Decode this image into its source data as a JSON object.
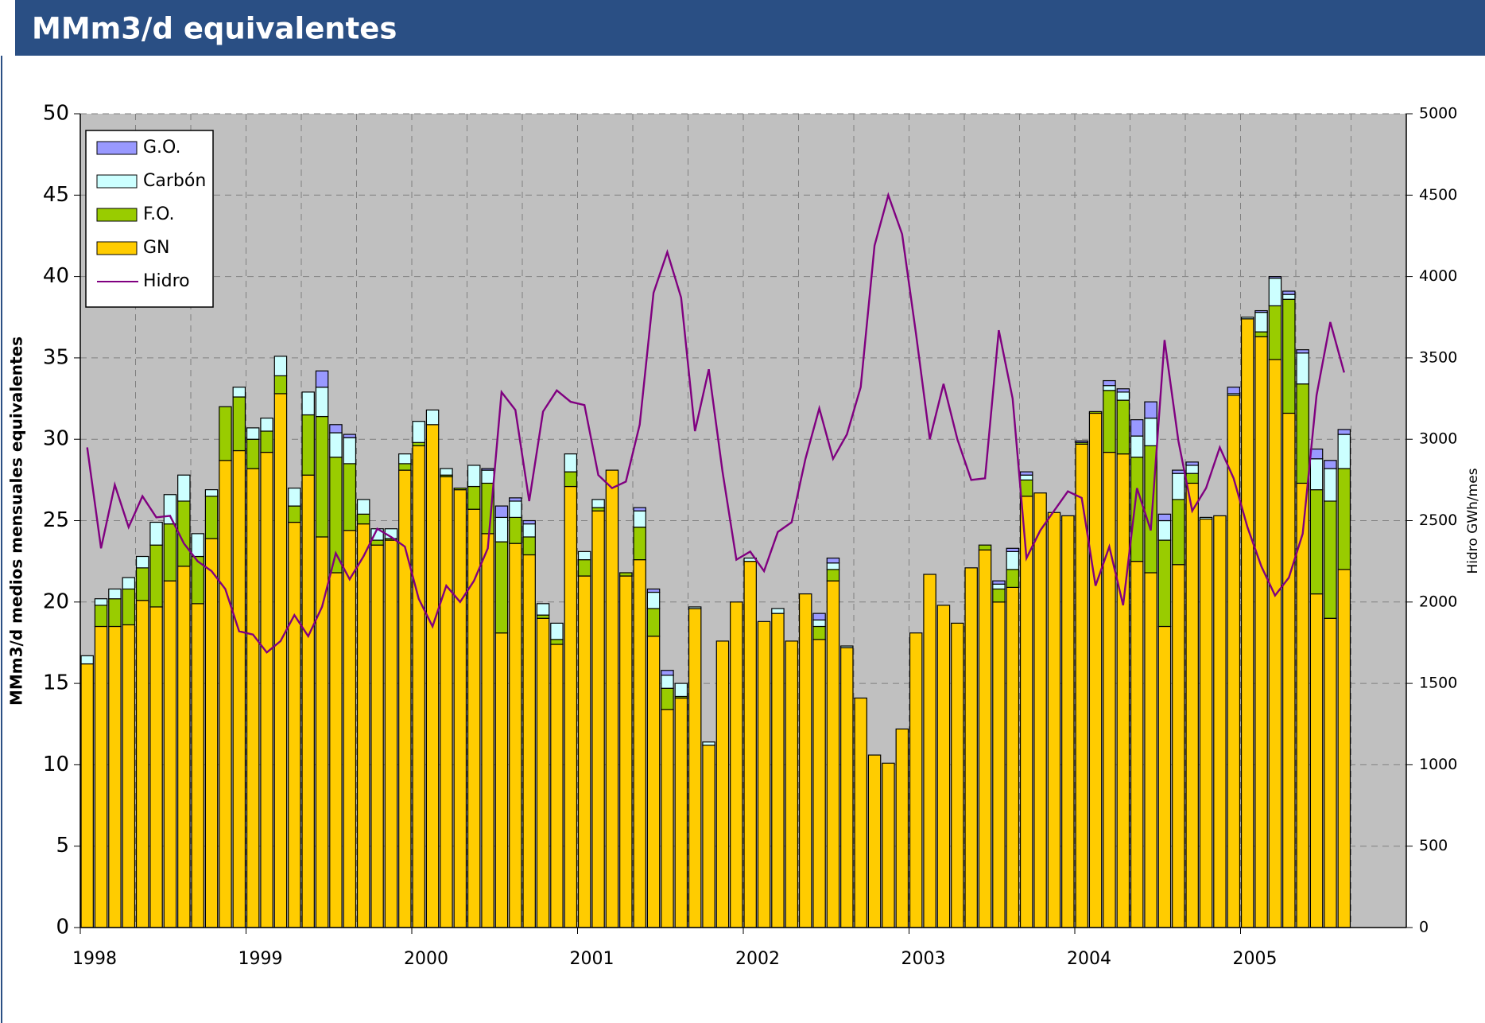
{
  "chart_data": {
    "type": "bar",
    "title": "MMm3/d equivalentes",
    "y_label": "MMm3/d medios mensuales equivalentes",
    "y2_label": "Hidro GWh/mes",
    "stacked": true,
    "grid": true,
    "legend": "top-left",
    "categories": [
      "1998",
      null,
      null,
      null,
      null,
      null,
      null,
      null,
      null,
      null,
      null,
      null,
      "1999",
      null,
      null,
      null,
      null,
      null,
      null,
      null,
      null,
      null,
      null,
      null,
      "2000",
      null,
      null,
      null,
      null,
      null,
      null,
      null,
      null,
      null,
      null,
      null,
      "2001",
      null,
      null,
      null,
      null,
      null,
      null,
      null,
      null,
      null,
      null,
      null,
      "2002",
      null,
      null,
      null,
      null,
      null,
      null,
      null,
      null,
      null,
      null,
      null,
      "2003",
      null,
      null,
      null,
      null,
      null,
      null,
      null,
      null,
      null,
      null,
      null,
      "2004",
      null,
      null,
      null,
      null,
      null,
      null,
      null,
      null,
      null,
      null,
      null,
      "2005",
      null,
      null,
      null,
      null,
      null,
      null,
      null
    ],
    "ylim": [
      0,
      50
    ],
    "yticks": [
      0,
      5,
      10,
      15,
      20,
      25,
      30,
      35,
      40,
      45,
      50
    ],
    "y2lim": [
      0,
      5000
    ],
    "y2ticks": [
      0,
      500,
      1000,
      1500,
      2000,
      2500,
      3000,
      3500,
      4000,
      4500,
      5000
    ],
    "series": [
      {
        "name": "GN",
        "color": "#ffcc00",
        "values": [
          16.2,
          18.5,
          18.5,
          18.6,
          20.1,
          19.7,
          21.3,
          22.2,
          19.9,
          23.9,
          28.7,
          29.3,
          28.2,
          29.2,
          32.8,
          24.9,
          27.8,
          24.0,
          21.8,
          24.4,
          24.8,
          23.5,
          23.8,
          28.1,
          29.6,
          30.9,
          27.7,
          26.9,
          25.7,
          24.2,
          18.1,
          23.6,
          22.9,
          19.0,
          17.4,
          27.1,
          21.6,
          25.6,
          28.1,
          21.6,
          22.6,
          17.9,
          13.4,
          14.1,
          19.6,
          11.2,
          17.6,
          20.0,
          22.5,
          18.8,
          19.3,
          17.6,
          20.5,
          17.7,
          21.3,
          17.2,
          14.1,
          10.6,
          10.1,
          12.2,
          18.1,
          21.7,
          19.8,
          18.7,
          22.1,
          23.2,
          20.0,
          20.9,
          26.5,
          26.7,
          25.5,
          25.3,
          29.7,
          31.6,
          29.2,
          29.1,
          22.5,
          21.8,
          18.5,
          22.3,
          27.3,
          25.1,
          25.3,
          32.7,
          37.4,
          36.3,
          34.9,
          31.6,
          27.3,
          20.5,
          19.0,
          22.0
        ]
      },
      {
        "name": "F.O.",
        "color": "#99cc00",
        "values": [
          0,
          1.3,
          1.7,
          2.2,
          2.0,
          3.8,
          3.5,
          4.0,
          2.9,
          2.6,
          3.3,
          3.3,
          1.8,
          1.3,
          1.1,
          1.0,
          3.7,
          7.4,
          7.1,
          4.1,
          0.6,
          0.3,
          0.1,
          0.4,
          0.2,
          0,
          0.1,
          0.1,
          1.4,
          3.1,
          5.6,
          1.6,
          1.1,
          0.2,
          0.3,
          0.9,
          1.0,
          0.2,
          0,
          0.2,
          2.0,
          1.7,
          1.3,
          0.1,
          0,
          0,
          0,
          0,
          0,
          0,
          0,
          0,
          0,
          0.8,
          0.7,
          0,
          0,
          0,
          0,
          0,
          0,
          0,
          0,
          0,
          0,
          0.3,
          0.8,
          1.1,
          1.0,
          0,
          0,
          0,
          0.1,
          0.1,
          3.8,
          3.3,
          6.4,
          7.8,
          5.3,
          4.0,
          0.6,
          0,
          0,
          0,
          0,
          0.3,
          3.3,
          7.0,
          6.1,
          6.4,
          7.2,
          6.2
        ]
      },
      {
        "name": "Carbón",
        "color": "#ccffff",
        "values": [
          0.5,
          0.4,
          0.6,
          0.7,
          0.7,
          1.4,
          1.8,
          1.6,
          1.4,
          0.4,
          0,
          0.6,
          0.7,
          0.8,
          1.2,
          1.1,
          1.4,
          1.8,
          1.5,
          1.6,
          0.9,
          0.7,
          0.6,
          0.6,
          1.3,
          0.9,
          0.4,
          0,
          1.3,
          0.8,
          1.5,
          1.0,
          0.8,
          0.7,
          1.0,
          1.1,
          0.5,
          0.5,
          0,
          0,
          1.0,
          1.0,
          0.8,
          0.8,
          0.1,
          0.2,
          0,
          0,
          0.2,
          0,
          0.3,
          0,
          0,
          0.4,
          0.4,
          0.1,
          0,
          0,
          0,
          0,
          0,
          0,
          0,
          0,
          0,
          0,
          0.3,
          1.1,
          0.3,
          0,
          0,
          0,
          0,
          0,
          0.3,
          0.5,
          1.3,
          1.7,
          1.2,
          1.6,
          0.5,
          0.1,
          0,
          0.1,
          0.1,
          1.2,
          1.7,
          0.3,
          1.9,
          1.9,
          2.0,
          2.1
        ]
      },
      {
        "name": "G.O.",
        "color": "#9999ff",
        "values": [
          0,
          0,
          0,
          0,
          0,
          0,
          0,
          0,
          0,
          0,
          0,
          0,
          0,
          0,
          0,
          0,
          0,
          1.0,
          0.5,
          0.2,
          0,
          0,
          0,
          0,
          0,
          0,
          0,
          0,
          0,
          0.1,
          0.7,
          0.2,
          0.2,
          0,
          0,
          0,
          0,
          0,
          0,
          0,
          0.2,
          0.2,
          0.3,
          0,
          0,
          0,
          0,
          0,
          0,
          0,
          0,
          0,
          0,
          0.4,
          0.3,
          0,
          0,
          0,
          0,
          0,
          0,
          0,
          0,
          0,
          0,
          0,
          0.2,
          0.2,
          0.2,
          0,
          0,
          0,
          0.1,
          0,
          0.3,
          0.2,
          1.0,
          1.0,
          0.4,
          0.2,
          0.2,
          0,
          0,
          0.4,
          0,
          0.1,
          0.1,
          0.2,
          0.2,
          0.6,
          0.5,
          0.3
        ]
      },
      {
        "name": "Hidro",
        "color": "#800080",
        "type": "line",
        "axis": "y2",
        "values": [
          2950,
          2330,
          2720,
          2460,
          2650,
          2520,
          2530,
          2360,
          2250,
          2190,
          2080,
          1820,
          1800,
          1690,
          1760,
          1920,
          1790,
          1970,
          2300,
          2140,
          2280,
          2450,
          2400,
          2340,
          2020,
          1850,
          2100,
          2000,
          2130,
          2330,
          3290,
          3180,
          2620,
          3170,
          3300,
          3230,
          3210,
          2780,
          2700,
          2740,
          3090,
          3900,
          4150,
          3870,
          3050,
          3430,
          2800,
          2260,
          2310,
          2190,
          2430,
          2490,
          2880,
          3190,
          2880,
          3030,
          3320,
          4190,
          4500,
          4260,
          3650,
          3000,
          3340,
          3000,
          2750,
          2760,
          3670,
          3250,
          2270,
          2440,
          2560,
          2680,
          2640,
          2100,
          2340,
          1980,
          2700,
          2440,
          3610,
          2990,
          2560,
          2700,
          2950,
          2760,
          2460,
          2220,
          2040,
          2150,
          2420,
          3270,
          3720,
          3410
        ]
      }
    ]
  }
}
